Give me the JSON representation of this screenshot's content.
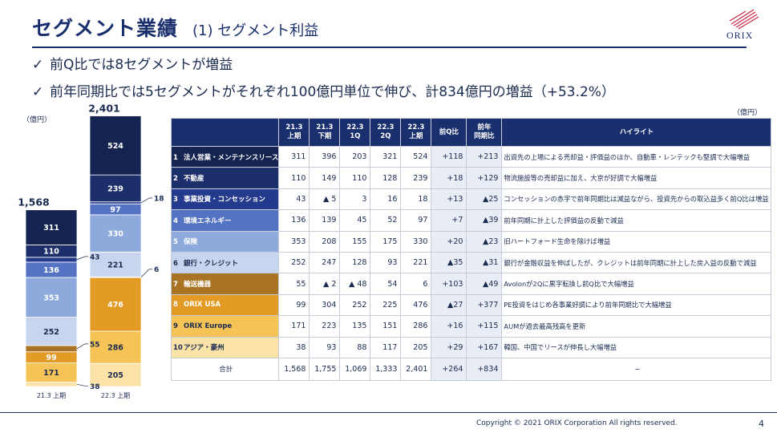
{
  "header": {
    "title": "セグメント業績",
    "subtitle": "(1) セグメント利益",
    "logo_text": "ORIX"
  },
  "bullets": [
    "前Q比では8セグメントが増益",
    "前年同期比では5セグメントがそれぞれ100億円単位で伸び、計834億円の増益（+53.2%）"
  ],
  "bullet_mark": "✓",
  "chart_data": {
    "type": "bar",
    "stacked": true,
    "unit_label": "（億円）",
    "categories": [
      "21.3 上期",
      "22.3 上期"
    ],
    "totals": [
      "1,568",
      "2,401"
    ],
    "series": [
      {
        "values": [
          38,
          205
        ],
        "color": "#fbe3a8"
      },
      {
        "values": [
          171,
          286
        ],
        "color": "#f5c356"
      },
      {
        "values": [
          99,
          476
        ],
        "color": "#e39b26"
      },
      {
        "values": [
          55,
          6
        ],
        "color": "#a87424"
      },
      {
        "values": [
          252,
          221
        ],
        "color": "#c8d5ef"
      },
      {
        "values": [
          353,
          330
        ],
        "color": "#8eaadc"
      },
      {
        "values": [
          136,
          97
        ],
        "color": "#5474c3"
      },
      {
        "values": [
          43,
          18
        ],
        "color": "#243a8c"
      },
      {
        "values": [
          110,
          239
        ],
        "color": "#1d2f6b"
      },
      {
        "values": [
          311,
          524
        ],
        "color": "#14234f"
      }
    ],
    "side_labels": {
      "left": [
        "43",
        "55",
        "38"
      ],
      "right": [
        "18",
        "6"
      ]
    }
  },
  "table": {
    "unit_label": "（億円）",
    "columns": [
      "21.3\n上期",
      "21.3\n下期",
      "22.3\n1Q",
      "22.3\n2Q",
      "22.3\n上期",
      "前Q比",
      "前年\n同期比",
      "ハイライト"
    ],
    "rows": [
      {
        "idx": "1",
        "name": "法人営業・メンテナンスリース",
        "color": "#14234f",
        "values": [
          "311",
          "396",
          "203",
          "321",
          "524"
        ],
        "qoq": "+118",
        "yoy": "+213",
        "highlight": "出資先の上場による売却益・評価益のほか、自動車・レンテックも堅調で大幅増益"
      },
      {
        "idx": "2",
        "name": "不動産",
        "color": "#1d2f6b",
        "values": [
          "110",
          "149",
          "110",
          "128",
          "239"
        ],
        "qoq": "+18",
        "yoy": "+129",
        "highlight": "物流施設等の売却益に加え、大京が好調で大幅増益"
      },
      {
        "idx": "3",
        "name": "事業投資・コンセッション",
        "color": "#243a8c",
        "values": [
          "43",
          "▲ 5",
          "3",
          "16",
          "18"
        ],
        "qoq": "+13",
        "yoy": "▲25",
        "highlight": "コンセッションの赤字で前年同期比は減益ながら、投資先からの取込益多く前Q比は増益"
      },
      {
        "idx": "4",
        "name": "環境エネルギー",
        "color": "#5474c3",
        "values": [
          "136",
          "139",
          "45",
          "52",
          "97"
        ],
        "qoq": "+7",
        "yoy": "▲39",
        "highlight": "前年同期に計上した評価益の反動で減益"
      },
      {
        "idx": "5",
        "name": "保険",
        "color": "#8eaadc",
        "values": [
          "353",
          "208",
          "155",
          "175",
          "330"
        ],
        "qoq": "+20",
        "yoy": "▲23",
        "highlight": "旧ハートフォード生命を除けば増益"
      },
      {
        "idx": "6",
        "name": "銀行・クレジット",
        "color": "#c8d5ef",
        "values": [
          "252",
          "247",
          "128",
          "93",
          "221"
        ],
        "qoq": "▲35",
        "yoy": "▲31",
        "highlight": "銀行が金融収益を伸ばしたが、クレジットは前年同期に計上した戻入益の反動で減益"
      },
      {
        "idx": "7",
        "name": "輸送機器",
        "color": "#a87424",
        "values": [
          "55",
          "▲ 2",
          "▲ 48",
          "54",
          "6"
        ],
        "qoq": "+103",
        "yoy": "▲49",
        "highlight": "Avolonが2Qに黒字転換し前Q比で大幅増益"
      },
      {
        "idx": "8",
        "name": "ORIX USA",
        "color": "#e39b26",
        "values": [
          "99",
          "304",
          "252",
          "225",
          "476"
        ],
        "qoq": "▲27",
        "yoy": "+377",
        "highlight": "PE投資をはじめ各事業好調により前年同期比で大幅増益"
      },
      {
        "idx": "9",
        "name": "ORIX Europe",
        "color": "#f5c356",
        "values": [
          "171",
          "223",
          "135",
          "151",
          "286"
        ],
        "qoq": "+16",
        "yoy": "+115",
        "highlight": "AUMが過去最高残高を更新"
      },
      {
        "idx": "10",
        "name": "アジア・豪州",
        "color": "#fbe3a8",
        "values": [
          "38",
          "93",
          "88",
          "117",
          "205"
        ],
        "qoq": "+29",
        "yoy": "+167",
        "highlight": "韓国、中国でリースが伸長し大幅増益"
      }
    ],
    "total": {
      "name": "合計",
      "values": [
        "1,568",
        "1,755",
        "1,069",
        "1,333",
        "2,401"
      ],
      "qoq": "+264",
      "yoy": "+834",
      "highlight": "−"
    }
  },
  "footer": {
    "copyright": "Copyright © 2021 ORIX Corporation  All rights reserved.",
    "page": "4"
  }
}
